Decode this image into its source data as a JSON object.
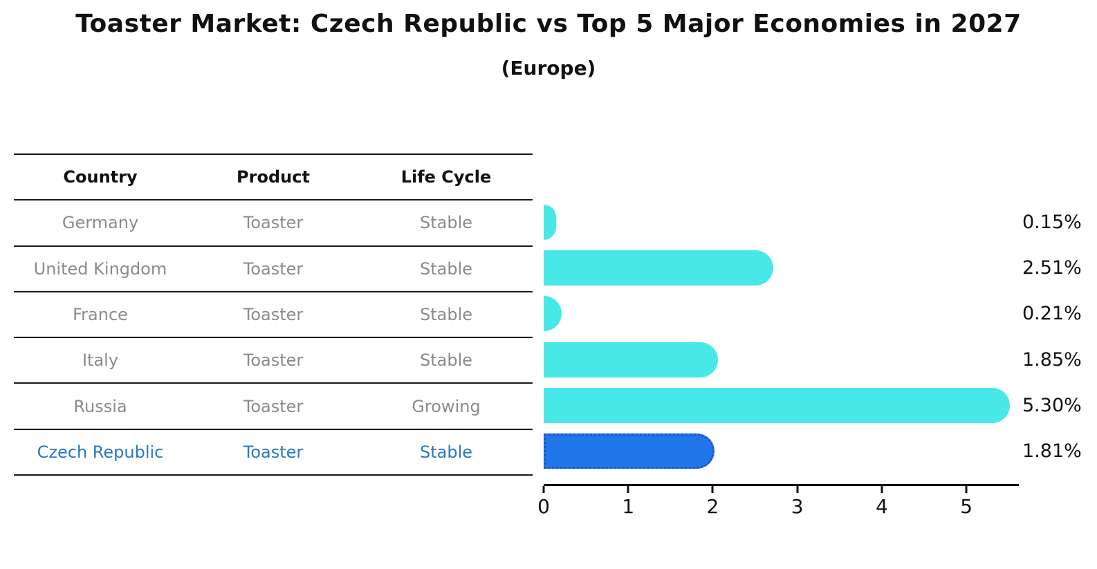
{
  "header": {
    "title": "Toaster Market: Czech Republic vs Top 5 Major Economies in 2027",
    "subtitle": "(Europe)"
  },
  "table": {
    "columns": [
      "Country",
      "Product",
      "Life Cycle"
    ],
    "rows": [
      {
        "country": "Germany",
        "product": "Toaster",
        "life_cycle": "Stable",
        "highlight": false
      },
      {
        "country": "United Kingdom",
        "product": "Toaster",
        "life_cycle": "Stable",
        "highlight": false
      },
      {
        "country": "France",
        "product": "Toaster",
        "life_cycle": "Stable",
        "highlight": false
      },
      {
        "country": "Italy",
        "product": "Toaster",
        "life_cycle": "Stable",
        "highlight": false
      },
      {
        "country": "Russia",
        "product": "Toaster",
        "life_cycle": "Growing",
        "highlight": false
      },
      {
        "country": "Czech Republic",
        "product": "Toaster",
        "life_cycle": "Stable",
        "highlight": true
      }
    ]
  },
  "chart_data": {
    "type": "bar",
    "orientation": "horizontal",
    "title": "Toaster Market: Czech Republic vs Top 5 Major Economies in 2027",
    "subtitle": "(Europe)",
    "categories": [
      "Germany",
      "United Kingdom",
      "France",
      "Italy",
      "Russia",
      "Czech Republic"
    ],
    "values": [
      0.15,
      2.51,
      0.21,
      1.85,
      5.3,
      1.81
    ],
    "value_labels": [
      "0.15%",
      "2.51%",
      "0.21%",
      "1.85%",
      "5.30%",
      "1.81%"
    ],
    "x_ticks": [
      0,
      1,
      2,
      3,
      4,
      5
    ],
    "xlim": [
      0,
      5.62
    ],
    "grid": false,
    "legend": false,
    "highlight_index": 5,
    "bar_color": "#48E8E8",
    "highlight_bar_color": "#2176E8",
    "highlight_border_color": "#1558CC",
    "highlight_text_color": "#2878C8",
    "table_text_color": "#8B8B8B",
    "axis_color": "#111111"
  }
}
